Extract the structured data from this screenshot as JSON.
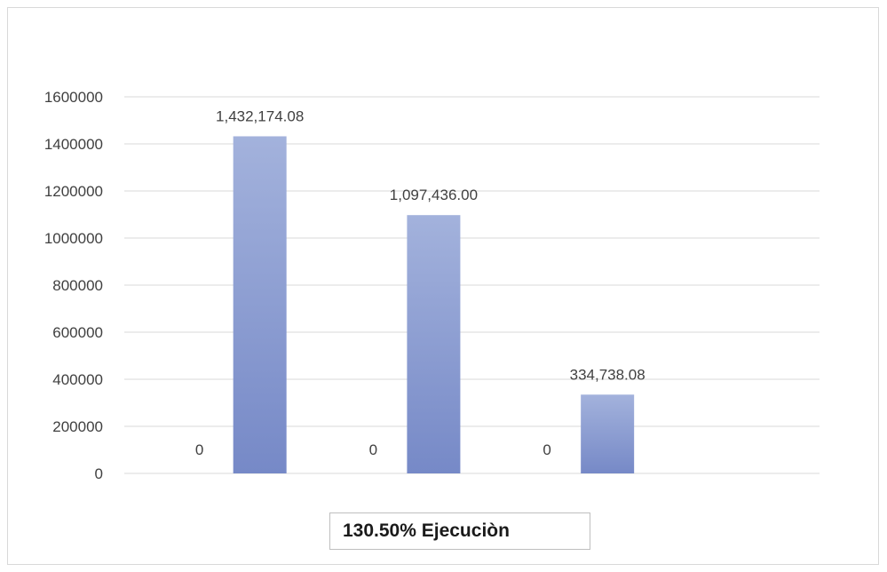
{
  "chart_data": {
    "type": "bar",
    "categories": [
      "",
      "",
      ""
    ],
    "series": [
      {
        "values": [
          0,
          0,
          0
        ],
        "data_labels": [
          "0",
          "0",
          "0"
        ]
      },
      {
        "values": [
          1432174.08,
          1097436.0,
          334738.08
        ],
        "data_labels": [
          "1,432,174.08",
          "1,097,436.00",
          "334,738.08"
        ]
      }
    ],
    "ylim": [
      0,
      1600000
    ],
    "yticks": [
      "0",
      "200000",
      "400000",
      "600000",
      "800000",
      "1000000",
      "1200000",
      "1400000",
      "1600000"
    ],
    "grid": true,
    "colors": {
      "bar_top": "#a3b2dc",
      "bar_bottom": "#7689c7",
      "grid": "#d9d9d9",
      "text": "#404040"
    }
  },
  "footer": {
    "text": "130.50%  Ejecuciòn"
  }
}
